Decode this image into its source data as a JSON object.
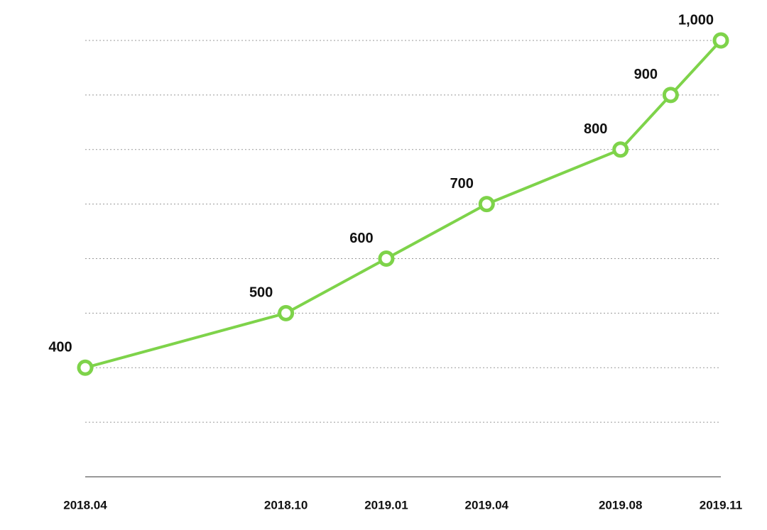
{
  "chart_data": {
    "type": "line",
    "x": [
      "2018.04",
      "2018.10",
      "2019.01",
      "2019.04",
      "2019.08",
      null,
      "2019.11"
    ],
    "series": [
      {
        "color": "#7ed34a",
        "values": [
          400,
          500,
          600,
          700,
          800,
          900,
          1000
        ],
        "value_labels": [
          "400",
          "500",
          "600",
          "700",
          "800",
          "900",
          "1,000"
        ]
      }
    ],
    "ylim": [
      200,
      1000
    ],
    "yticks": [
      300,
      400,
      500,
      600,
      700,
      800,
      900,
      1000
    ],
    "grid": true
  }
}
